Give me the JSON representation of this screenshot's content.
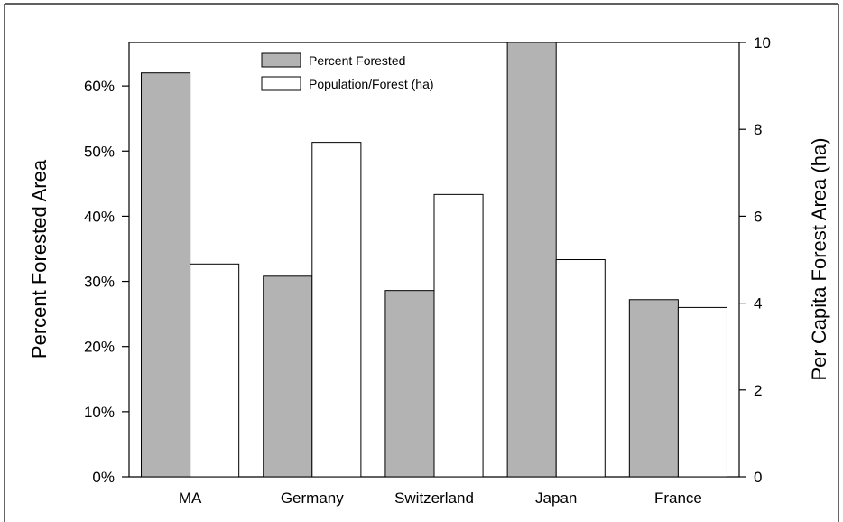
{
  "chart_data": {
    "type": "bar",
    "categories": [
      "MA",
      "Germany",
      "Switzerland",
      "Japan",
      "France"
    ],
    "series": [
      {
        "name": "Percent Forested",
        "axis": "left",
        "color": "#b3b3b3",
        "values": [
          0.62,
          0.308,
          0.286,
          0.68,
          0.272
        ]
      },
      {
        "name": "Population/Forest (ha)",
        "axis": "right",
        "color": "#ffffff",
        "values": [
          4.9,
          7.7,
          6.5,
          5.0,
          3.9
        ]
      }
    ],
    "ylabel": "Percent Forested Area",
    "y2label": "Per Capita Forest Area (ha)",
    "ylim": [
      0,
      0.6667
    ],
    "yticks": [
      0,
      0.1,
      0.2,
      0.3,
      0.4,
      0.5,
      0.6
    ],
    "ytick_labels": [
      "0%",
      "10%",
      "20%",
      "30%",
      "40%",
      "50%",
      "60%"
    ],
    "y2lim": [
      0,
      10
    ],
    "y2ticks": [
      0,
      2,
      4,
      6,
      8,
      10
    ],
    "y2tick_labels": [
      "0",
      "2",
      "4",
      "6",
      "8",
      "10"
    ],
    "legend_position": "top-center",
    "grid": false
  }
}
